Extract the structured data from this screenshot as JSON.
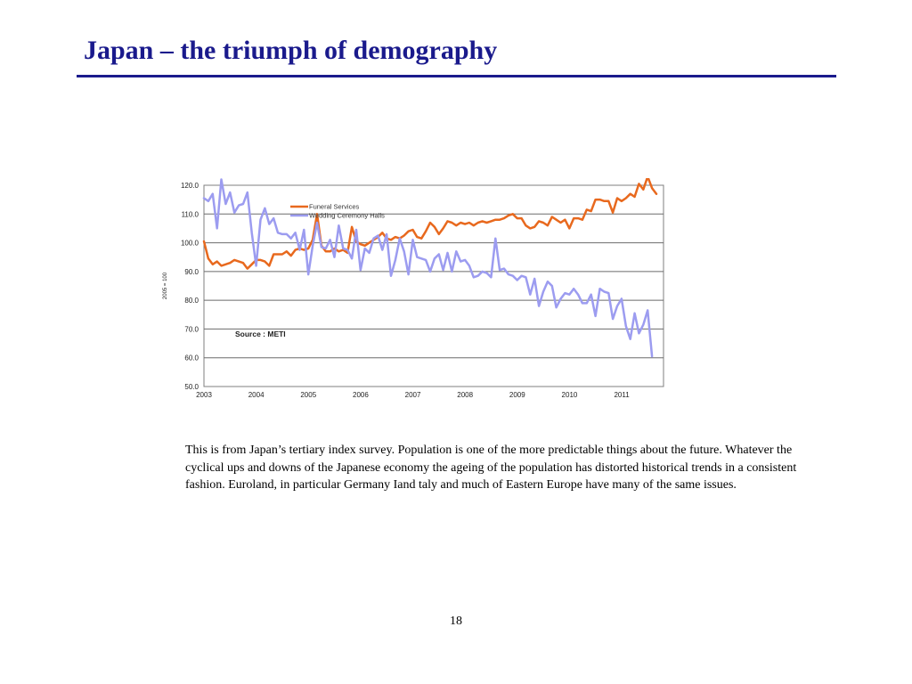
{
  "slide": {
    "title": "Japan – the triumph of demography",
    "caption": "This is from Japan’s  tertiary index survey. Population is one of the more predictable things about the future. Whatever the cyclical ups and downs of the Japanese economy the ageing of the population has distorted historical trends in a consistent fashion. Euroland, in particular Germany Iand taly and much of Eastern Europe have many of the same issues.",
    "page_number": "18"
  },
  "chart_data": {
    "type": "line",
    "title": "",
    "xlabel": "",
    "ylabel": "2005 = 100",
    "annotation": "Source : METI",
    "ylim": [
      50,
      120
    ],
    "xlim": [
      2003,
      2011.8
    ],
    "grid": true,
    "legend_placement": "top-left",
    "y_ticks": [
      "120.0",
      "110.0",
      "100.0",
      "90.0",
      "80.0",
      "70.0",
      "60.0",
      "50.0"
    ],
    "x_ticks": [
      "2003",
      "2004",
      "2005",
      "2006",
      "2007",
      "2008",
      "2009",
      "2010",
      "2011"
    ],
    "series": [
      {
        "name": "Funeral Services",
        "color": "#e8691e",
        "x_start": 2003,
        "step": 0.0833,
        "values": [
          100.5,
          94.5,
          92.5,
          93.5,
          92.0,
          92.5,
          93.0,
          94.0,
          93.5,
          93.0,
          91.0,
          92.5,
          94.0,
          94.0,
          93.5,
          92.0,
          96.0,
          96.0,
          96.0,
          97.0,
          95.5,
          97.5,
          98.0,
          97.5,
          98.0,
          101.0,
          110.0,
          99.0,
          97.0,
          97.0,
          98.0,
          97.0,
          97.5,
          96.5,
          105.5,
          100.5,
          99.5,
          99.0,
          100.0,
          101.0,
          102.0,
          103.5,
          101.5,
          101.0,
          102.0,
          101.5,
          102.5,
          104.0,
          104.5,
          102.0,
          101.5,
          104.0,
          107.0,
          105.5,
          103.0,
          105.0,
          107.5,
          107.0,
          106.0,
          107.0,
          106.5,
          107.0,
          106.0,
          107.0,
          107.5,
          107.0,
          107.5,
          108.0,
          108.0,
          108.5,
          109.5,
          110.0,
          108.5,
          108.5,
          106.0,
          105.0,
          105.5,
          107.5,
          107.0,
          106.0,
          109.0,
          108.0,
          107.0,
          108.0,
          105.0,
          108.5,
          108.5,
          108.0,
          111.5,
          111.0,
          115.0,
          115.0,
          114.5,
          114.5,
          110.5,
          115.5,
          114.5,
          115.5,
          117.0,
          116.0,
          120.5,
          118.5,
          123.0,
          119.0,
          117.0
        ]
      },
      {
        "name": "Wedding Ceremony Halls",
        "color": "#9c9cf0",
        "x_start": 2003,
        "step": 0.0833,
        "values": [
          115.5,
          114.5,
          117.0,
          105.0,
          122.0,
          113.5,
          117.5,
          110.5,
          113.0,
          113.5,
          117.5,
          103.5,
          92.0,
          108.0,
          112.0,
          106.5,
          108.5,
          103.5,
          103.0,
          103.0,
          101.5,
          103.5,
          97.5,
          104.5,
          89.0,
          99.0,
          107.0,
          98.5,
          98.0,
          101.0,
          95.0,
          106.0,
          98.0,
          97.5,
          94.5,
          104.5,
          90.5,
          98.0,
          96.5,
          101.5,
          102.5,
          97.5,
          103.0,
          88.5,
          94.0,
          101.5,
          97.0,
          89.0,
          101.0,
          95.0,
          94.5,
          94.0,
          90.0,
          94.5,
          96.0,
          90.5,
          96.5,
          90.0,
          97.0,
          93.5,
          94.0,
          92.0,
          88.0,
          88.5,
          90.0,
          89.5,
          88.0,
          101.5,
          90.5,
          91.0,
          89.0,
          88.5,
          87.0,
          88.5,
          88.0,
          82.0,
          87.5,
          78.0,
          83.0,
          86.5,
          85.0,
          77.5,
          80.5,
          82.5,
          82.0,
          84.0,
          82.0,
          79.0,
          79.0,
          82.0,
          74.5,
          84.0,
          83.0,
          82.5,
          73.5,
          78.0,
          80.5,
          71.0,
          66.5,
          75.5,
          68.5,
          71.5,
          76.5,
          60.5
        ]
      }
    ]
  }
}
